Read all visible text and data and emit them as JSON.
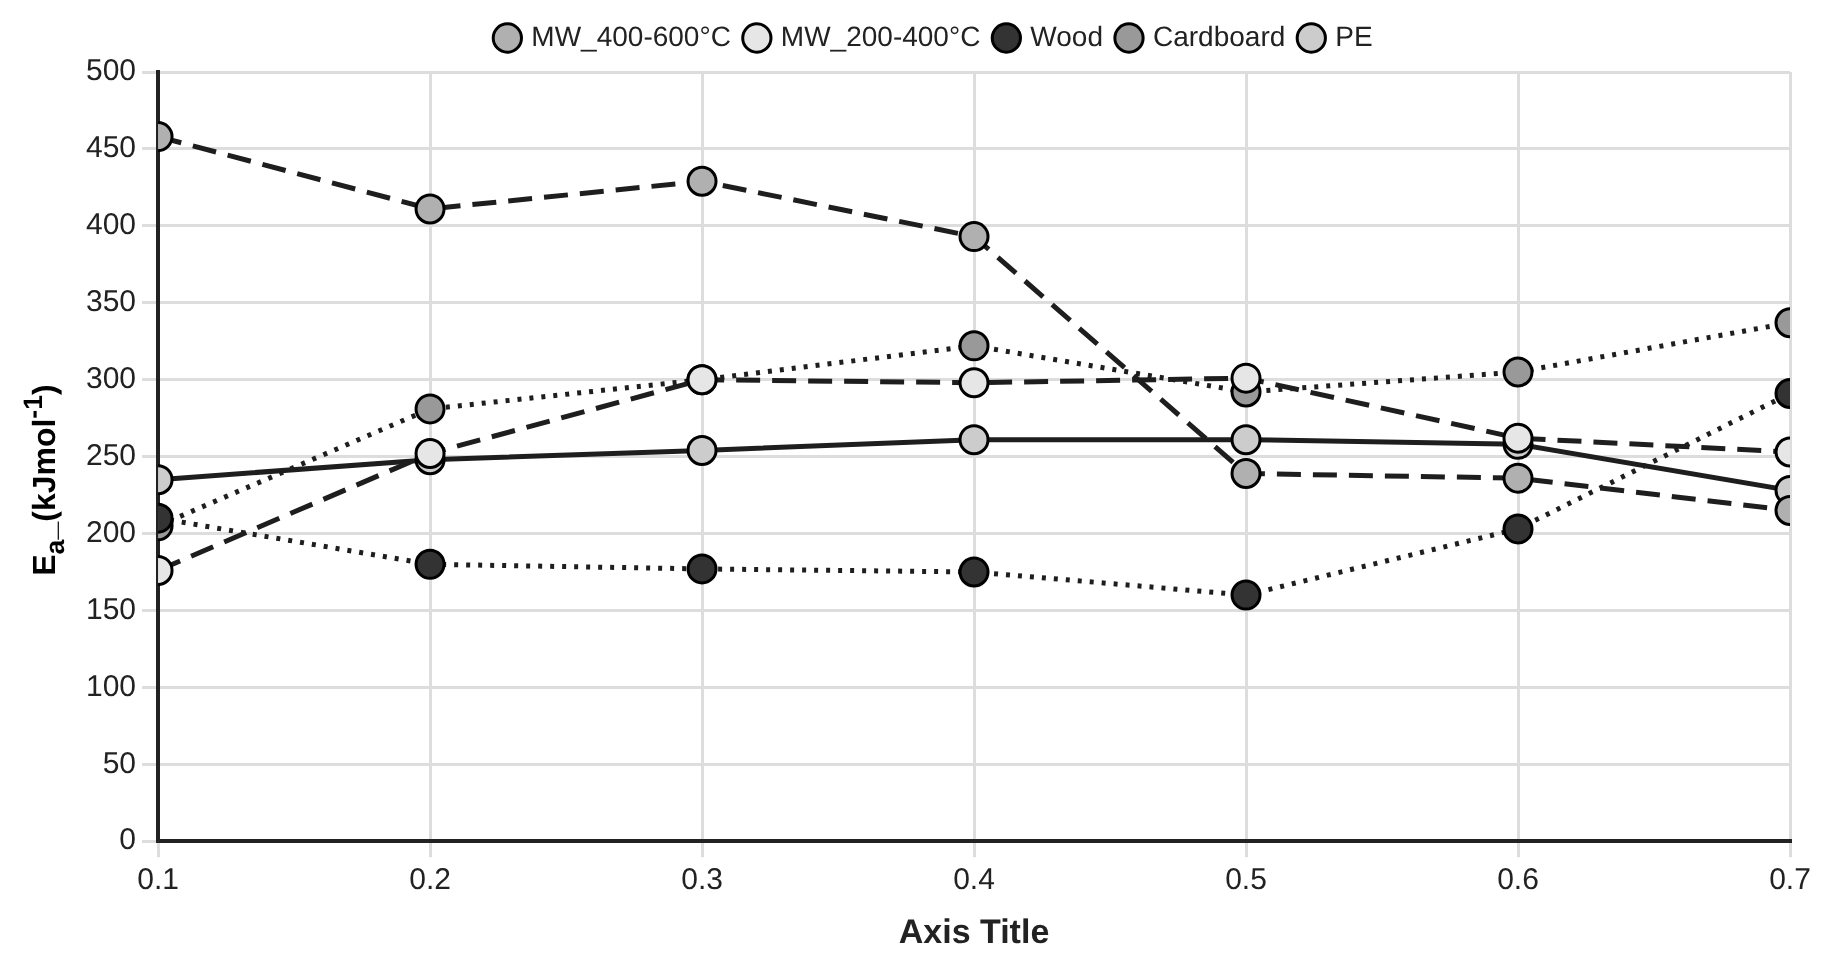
{
  "chart_data": {
    "type": "line",
    "xlabel": "Axis Title",
    "ylabel": "E$_{a}$_(kJmol$^{-1}$)",
    "x": [
      0.1,
      0.2,
      0.3,
      0.4,
      0.5,
      0.6,
      0.7
    ],
    "xlim": [
      0.1,
      0.7
    ],
    "xticks": [
      0.1,
      0.2,
      0.3,
      0.4,
      0.5,
      0.6,
      0.7
    ],
    "ylim": [
      0,
      500
    ],
    "yticks": [
      0,
      50,
      100,
      150,
      200,
      250,
      300,
      350,
      400,
      450,
      500
    ],
    "grid": true,
    "legend": "top",
    "marker": "circle",
    "series": [
      {
        "name": "PE",
        "color": "#cccccc",
        "line_style": "solid",
        "values": [
          235,
          248,
          254,
          261,
          261,
          258,
          228
        ]
      },
      {
        "name": "Cardboard",
        "color": "#999999",
        "line_style": "dotted",
        "values": [
          205,
          281,
          300,
          322,
          292,
          305,
          337
        ]
      },
      {
        "name": "Wood",
        "color": "#333333",
        "line_style": "dotted",
        "values": [
          210,
          180,
          177,
          175,
          160,
          203,
          291
        ]
      },
      {
        "name": "MW_200-400°C",
        "color": "#e6e6e6",
        "line_style": "dashed",
        "values": [
          176,
          252,
          300,
          298,
          301,
          262,
          253
        ]
      },
      {
        "name": "MW_400-600°C",
        "color": "#b0b0b0",
        "line_style": "dashed",
        "values": [
          458,
          411,
          429,
          393,
          239,
          236,
          215
        ]
      }
    ]
  }
}
